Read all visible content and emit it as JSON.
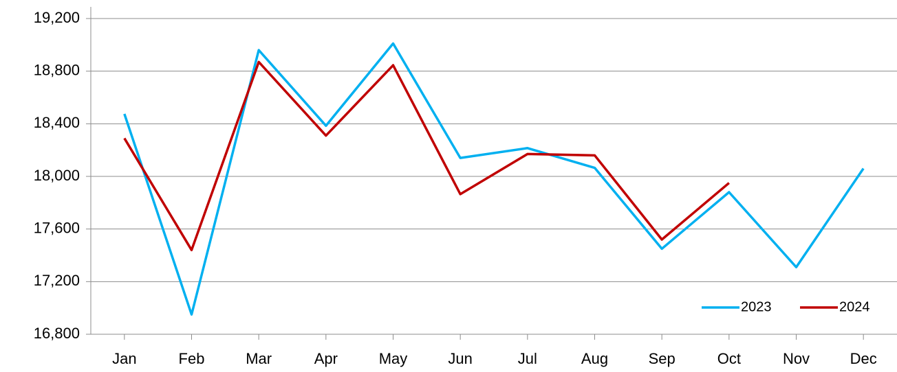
{
  "chart_data": {
    "type": "line",
    "categories": [
      "Jan",
      "Feb",
      "Mar",
      "Apr",
      "May",
      "Jun",
      "Jul",
      "Aug",
      "Sep",
      "Oct",
      "Nov",
      "Dec"
    ],
    "series": [
      {
        "name": "2023",
        "color": "#00b0f0",
        "values": [
          18475,
          16950,
          18960,
          18385,
          19010,
          18140,
          18215,
          18065,
          17450,
          17880,
          17310,
          18060
        ]
      },
      {
        "name": "2024",
        "color": "#c00000",
        "values": [
          18290,
          17440,
          18870,
          18310,
          18845,
          17865,
          18170,
          18160,
          17520,
          17950,
          null,
          null
        ]
      }
    ],
    "ylim": [
      16800,
      19200
    ],
    "yticks": [
      {
        "value": 16800,
        "label": "16,800"
      },
      {
        "value": 17200,
        "label": "17,200"
      },
      {
        "value": 17600,
        "label": "17,600"
      },
      {
        "value": 18000,
        "label": "18,000"
      },
      {
        "value": 18400,
        "label": "18,400"
      },
      {
        "value": 18800,
        "label": "18,800"
      },
      {
        "value": 19200,
        "label": "19,200"
      }
    ],
    "grid": true,
    "legend": "lower right"
  }
}
